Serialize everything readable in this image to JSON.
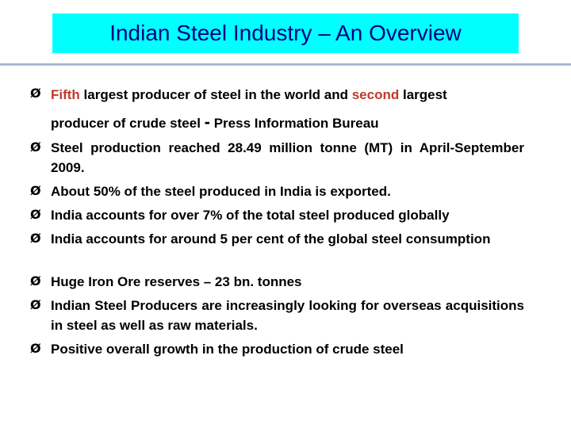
{
  "title": "Indian Steel Industry – An Overview",
  "bullets": {
    "b1": {
      "highlight1": "Fifth",
      "text1": " largest producer of steel in the world and ",
      "highlight2": "second",
      "text2": " largest",
      "line2": "producer of crude steel ",
      "dash": "-",
      "line2_end": " Press Information Bureau"
    },
    "b2": "Steel production reached 28.49 million tonne (MT) in April-September 2009.",
    "b3": "About 50% of the steel produced in India is exported.",
    "b4": "India accounts for over 7% of the total steel produced globally",
    "b5": "India accounts for around 5 per cent of the global steel consumption",
    "b6": "Huge Iron Ore reserves – 23 bn. tonnes",
    "b7": "Indian Steel Producers are increasingly looking for overseas acquisitions in steel as well as raw materials.",
    "b8": "Positive overall growth in the production of crude steel"
  },
  "bullet_marker": "Ø",
  "colors": {
    "title_bg": "#00ffff",
    "title_text": "#000080",
    "highlight": "#c0392b"
  }
}
